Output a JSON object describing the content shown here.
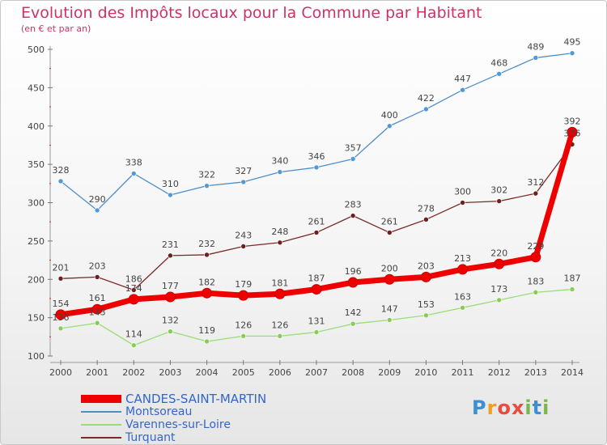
{
  "header": {
    "title": "Evolution des Impôts locaux pour la Commune par Habitant",
    "subtitle": "(en € et par an)"
  },
  "logo": {
    "text": "Proxiti",
    "letters": [
      "P",
      "r",
      "o",
      "x",
      "i",
      "t",
      "i"
    ],
    "colors": [
      "#3a8fd6",
      "#f0a020",
      "#e84c3d",
      "#e84c3d",
      "#7ab648",
      "#3a8fd6",
      "#7ab648"
    ]
  },
  "chart_data": {
    "type": "line",
    "categories": [
      "2000",
      "2001",
      "2002",
      "2003",
      "2004",
      "2005",
      "2006",
      "2007",
      "2008",
      "2009",
      "2010",
      "2011",
      "2012",
      "2013",
      "2014"
    ],
    "ylim": [
      100,
      500
    ],
    "yticks": [
      100,
      150,
      200,
      250,
      300,
      350,
      400,
      450,
      500
    ],
    "grid": false,
    "legend_position": "bottom-left",
    "series": [
      {
        "name": "Montsoreau",
        "color": "#4f8fc9",
        "marker": "#4f9ad6",
        "values": [
          328,
          290,
          338,
          310,
          322,
          327,
          340,
          346,
          357,
          400,
          422,
          447,
          468,
          489,
          495
        ],
        "labels": [
          "328",
          "290",
          "338",
          "310",
          "322",
          "327",
          "340",
          "346",
          "357",
          "400",
          "422",
          "447",
          "468",
          "489",
          "495"
        ]
      },
      {
        "name": "Turquant",
        "color": "#7a2a2a",
        "marker": "#6b1f1f",
        "values": [
          201,
          203,
          186,
          231,
          232,
          243,
          248,
          261,
          283,
          261,
          278,
          300,
          302,
          312,
          376
        ],
        "labels": [
          "201",
          "203",
          "186",
          "231",
          "232",
          "243",
          "248",
          "261",
          "283",
          "261",
          "278",
          "300",
          "302",
          "312",
          "376"
        ]
      },
      {
        "name": "Varennes-sur-Loire",
        "color": "#99dd77",
        "marker": "#88cc55",
        "values": [
          136,
          143,
          114,
          132,
          119,
          126,
          126,
          131,
          142,
          147,
          153,
          163,
          173,
          183,
          187
        ],
        "labels": [
          "136",
          "143",
          "114",
          "132",
          "119",
          "126",
          "126",
          "131",
          "142",
          "147",
          "153",
          "163",
          "173",
          "183",
          "187"
        ]
      },
      {
        "name": "CANDES-SAINT-MARTIN",
        "color": "#ee0000",
        "marker": "#ee0000",
        "values": [
          154,
          161,
          174,
          177,
          182,
          179,
          181,
          187,
          196,
          200,
          203,
          213,
          220,
          229,
          392
        ],
        "labels": [
          "154",
          "161",
          "174",
          "177",
          "182",
          "179",
          "181",
          "187",
          "196",
          "200",
          "203",
          "213",
          "220",
          "229",
          "392"
        ]
      }
    ],
    "legend": [
      {
        "name": "CANDES-SAINT-MARTIN",
        "color": "#ee0000"
      },
      {
        "name": "Montsoreau",
        "color": "#4f8fc9"
      },
      {
        "name": "Varennes-sur-Loire",
        "color": "#99dd77"
      },
      {
        "name": "Turquant",
        "color": "#7a2a2a"
      }
    ]
  }
}
